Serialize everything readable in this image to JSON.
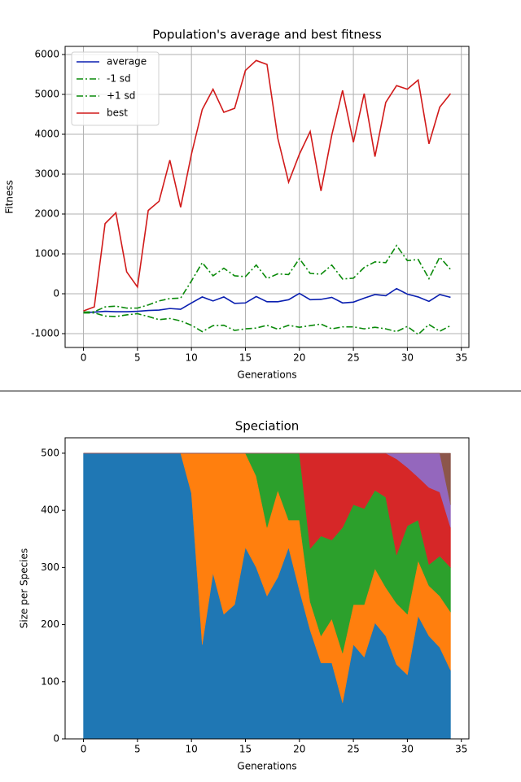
{
  "chart_data": [
    {
      "type": "line",
      "title": "Population's average and best fitness",
      "xlabel": "Generations",
      "ylabel": "Fitness",
      "x": [
        0,
        1,
        2,
        3,
        4,
        5,
        6,
        7,
        8,
        9,
        10,
        11,
        12,
        13,
        14,
        15,
        16,
        17,
        18,
        19,
        20,
        21,
        22,
        23,
        24,
        25,
        26,
        27,
        28,
        29,
        30,
        31,
        32,
        33,
        34
      ],
      "series": [
        {
          "name": "average",
          "color": "#0a1fb0",
          "linestyle": "solid",
          "values": [
            -470,
            -460,
            -440,
            -450,
            -450,
            -440,
            -420,
            -410,
            -370,
            -390,
            -230,
            -80,
            -180,
            -80,
            -240,
            -230,
            -70,
            -200,
            -200,
            -150,
            10,
            -150,
            -140,
            -90,
            -230,
            -210,
            -110,
            -20,
            -50,
            130,
            -10,
            -80,
            -190,
            -20,
            -90
          ]
        },
        {
          "name": "-1 sd",
          "color": "#0a8a0a",
          "linestyle": "dashdot",
          "values": [
            -480,
            -480,
            -560,
            -570,
            -530,
            -500,
            -570,
            -650,
            -620,
            -680,
            -790,
            -950,
            -800,
            -790,
            -920,
            -880,
            -860,
            -790,
            -890,
            -790,
            -840,
            -800,
            -760,
            -880,
            -830,
            -830,
            -880,
            -840,
            -880,
            -950,
            -820,
            -1020,
            -770,
            -940,
            -800
          ]
        },
        {
          "name": "+1 sd",
          "color": "#0a8a0a",
          "linestyle": "dashdot",
          "values": [
            -460,
            -450,
            -330,
            -310,
            -360,
            -360,
            -280,
            -180,
            -120,
            -110,
            320,
            780,
            450,
            640,
            450,
            430,
            720,
            380,
            500,
            480,
            880,
            510,
            490,
            720,
            370,
            390,
            660,
            800,
            780,
            1210,
            830,
            860,
            380,
            920,
            610
          ]
        },
        {
          "name": "best",
          "color": "#d11a1a",
          "linestyle": "solid",
          "values": [
            -430,
            -330,
            1760,
            2030,
            550,
            170,
            2090,
            2320,
            3350,
            2170,
            3500,
            4620,
            5130,
            4550,
            4650,
            5600,
            5850,
            5750,
            3900,
            2800,
            3500,
            4070,
            2580,
            3980,
            5100,
            3800,
            5020,
            3440,
            4800,
            5220,
            5130,
            5360,
            3760,
            4680,
            5020
          ]
        }
      ],
      "xlim": [
        -1.7,
        35.7
      ],
      "xticks": [
        0,
        5,
        10,
        15,
        20,
        25,
        30,
        35
      ],
      "ylim": [
        -1347,
        6204
      ],
      "yticks": [
        -1000,
        0,
        1000,
        2000,
        3000,
        4000,
        5000,
        6000
      ],
      "grid": true,
      "legend": "upper left"
    },
    {
      "type": "stackplot",
      "title": "Speciation",
      "xlabel": "Generations",
      "ylabel": "Size per Species",
      "x": [
        0,
        1,
        2,
        3,
        4,
        5,
        6,
        7,
        8,
        9,
        10,
        11,
        12,
        13,
        14,
        15,
        16,
        17,
        18,
        19,
        20,
        21,
        22,
        23,
        24,
        25,
        26,
        27,
        28,
        29,
        30,
        31,
        32,
        33,
        34
      ],
      "series": [
        {
          "color": "#1f77b4",
          "values": [
            500,
            500,
            500,
            500,
            500,
            500,
            500,
            500,
            500,
            500,
            430,
            165,
            290,
            218,
            235,
            335,
            300,
            250,
            283,
            335,
            260,
            190,
            133,
            133,
            63,
            165,
            143,
            203,
            180,
            130,
            112,
            215,
            180,
            160,
            120
          ]
        },
        {
          "color": "#ff7f0e",
          "values": [
            0,
            0,
            0,
            0,
            0,
            0,
            0,
            0,
            0,
            0,
            70,
            335,
            210,
            282,
            265,
            165,
            160,
            120,
            152,
            48,
            123,
            50,
            47,
            77,
            87,
            70,
            92,
            95,
            85,
            107,
            106,
            97,
            88,
            90,
            102
          ]
        },
        {
          "color": "#2ca02c",
          "values": [
            0,
            0,
            0,
            0,
            0,
            0,
            0,
            0,
            0,
            0,
            0,
            0,
            0,
            0,
            0,
            0,
            40,
            130,
            65,
            117,
            117,
            93,
            175,
            138,
            220,
            175,
            168,
            137,
            158,
            85,
            155,
            71,
            37,
            70,
            78
          ]
        },
        {
          "color": "#d62728",
          "values": [
            0,
            0,
            0,
            0,
            0,
            0,
            0,
            0,
            0,
            0,
            0,
            0,
            0,
            0,
            0,
            0,
            0,
            0,
            0,
            0,
            0,
            167,
            145,
            152,
            130,
            90,
            97,
            65,
            77,
            168,
            102,
            75,
            135,
            112,
            70
          ]
        },
        {
          "color": "#9467bd",
          "values": [
            0,
            0,
            0,
            0,
            0,
            0,
            0,
            0,
            0,
            0,
            0,
            0,
            0,
            0,
            0,
            0,
            0,
            0,
            0,
            0,
            0,
            0,
            0,
            0,
            0,
            0,
            0,
            0,
            0,
            10,
            25,
            42,
            60,
            68,
            40
          ]
        },
        {
          "color": "#8c564b",
          "values": [
            0,
            0,
            0,
            0,
            0,
            0,
            0,
            0,
            0,
            0,
            0,
            0,
            0,
            0,
            0,
            0,
            0,
            0,
            0,
            0,
            0,
            0,
            0,
            0,
            0,
            0,
            0,
            0,
            0,
            0,
            0,
            0,
            0,
            0,
            90
          ]
        }
      ],
      "xlim": [
        -1.7,
        35.7
      ],
      "xticks": [
        0,
        5,
        10,
        15,
        20,
        25,
        30,
        35
      ],
      "ylim": [
        0,
        527
      ],
      "yticks": [
        0,
        100,
        200,
        300,
        400,
        500
      ],
      "grid": false
    }
  ]
}
